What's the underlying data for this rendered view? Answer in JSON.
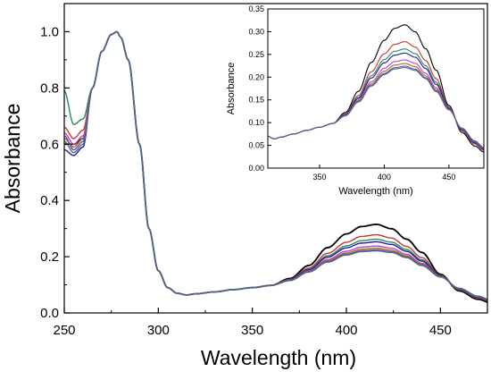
{
  "chart_data": [
    {
      "type": "line",
      "xlabel": "Wavelength (nm)",
      "ylabel": "Absorbance",
      "xlim": [
        250,
        475
      ],
      "ylim": [
        0.0,
        1.1
      ],
      "x_ticks": [
        250,
        300,
        350,
        400,
        450
      ],
      "x_tick_labels": [
        "250",
        "300",
        "350",
        "400",
        "450"
      ],
      "y_ticks": [
        0.0,
        0.2,
        0.4,
        0.6,
        0.8,
        1.0
      ],
      "y_tick_labels": [
        "0.0",
        "0.2",
        "0.4",
        "0.6",
        "0.8",
        "1.0"
      ],
      "grid": false,
      "legend": "none",
      "series": [
        {
          "color": "#000000",
          "peak": 0.315,
          "v250": 0.6,
          "v255": 0.6,
          "v260": 0.62
        },
        {
          "color": "#c0392b",
          "peak": 0.278,
          "v250": 0.66,
          "v255": 0.62,
          "v260": 0.65
        },
        {
          "color": "#2e8b57",
          "peak": 0.262,
          "v250": 0.79,
          "v255": 0.67,
          "v260": 0.69
        },
        {
          "color": "#1a1aa8",
          "peak": 0.253,
          "v250": 0.58,
          "v255": 0.56,
          "v260": 0.59
        },
        {
          "color": "#d633d6",
          "peak": 0.238,
          "v250": 0.64,
          "v255": 0.6,
          "v260": 0.63
        },
        {
          "color": "#808000",
          "peak": 0.23,
          "v250": 0.62,
          "v255": 0.59,
          "v260": 0.62
        },
        {
          "color": "#7b3fb0",
          "peak": 0.224,
          "v250": 0.63,
          "v255": 0.58,
          "v260": 0.61
        },
        {
          "color": "#4a6b8a",
          "peak": 0.221,
          "v250": 0.61,
          "v255": 0.57,
          "v260": 0.6
        }
      ]
    },
    {
      "type": "line",
      "xlabel": "Wavelength (nm)",
      "ylabel": "Absorbance",
      "xlim": [
        310,
        477
      ],
      "ylim": [
        0.0,
        0.35
      ],
      "x_ticks": [
        350,
        400,
        450
      ],
      "x_tick_labels": [
        "350",
        "400",
        "450"
      ],
      "y_ticks": [
        0.0,
        0.05,
        0.1,
        0.15,
        0.2,
        0.25,
        0.3,
        0.35
      ],
      "y_tick_labels": [
        "0.00",
        "0.05",
        "0.10",
        "0.15",
        "0.20",
        "0.25",
        "0.30",
        "0.35"
      ],
      "grid": false,
      "legend": "none",
      "series": [
        {
          "color": "#000000",
          "peak": 0.315
        },
        {
          "color": "#c0392b",
          "peak": 0.278
        },
        {
          "color": "#2e8b57",
          "peak": 0.262
        },
        {
          "color": "#1a1aa8",
          "peak": 0.253
        },
        {
          "color": "#d633d6",
          "peak": 0.238
        },
        {
          "color": "#808000",
          "peak": 0.23
        },
        {
          "color": "#7b3fb0",
          "peak": 0.224
        },
        {
          "color": "#4a6b8a",
          "peak": 0.221
        }
      ]
    }
  ]
}
